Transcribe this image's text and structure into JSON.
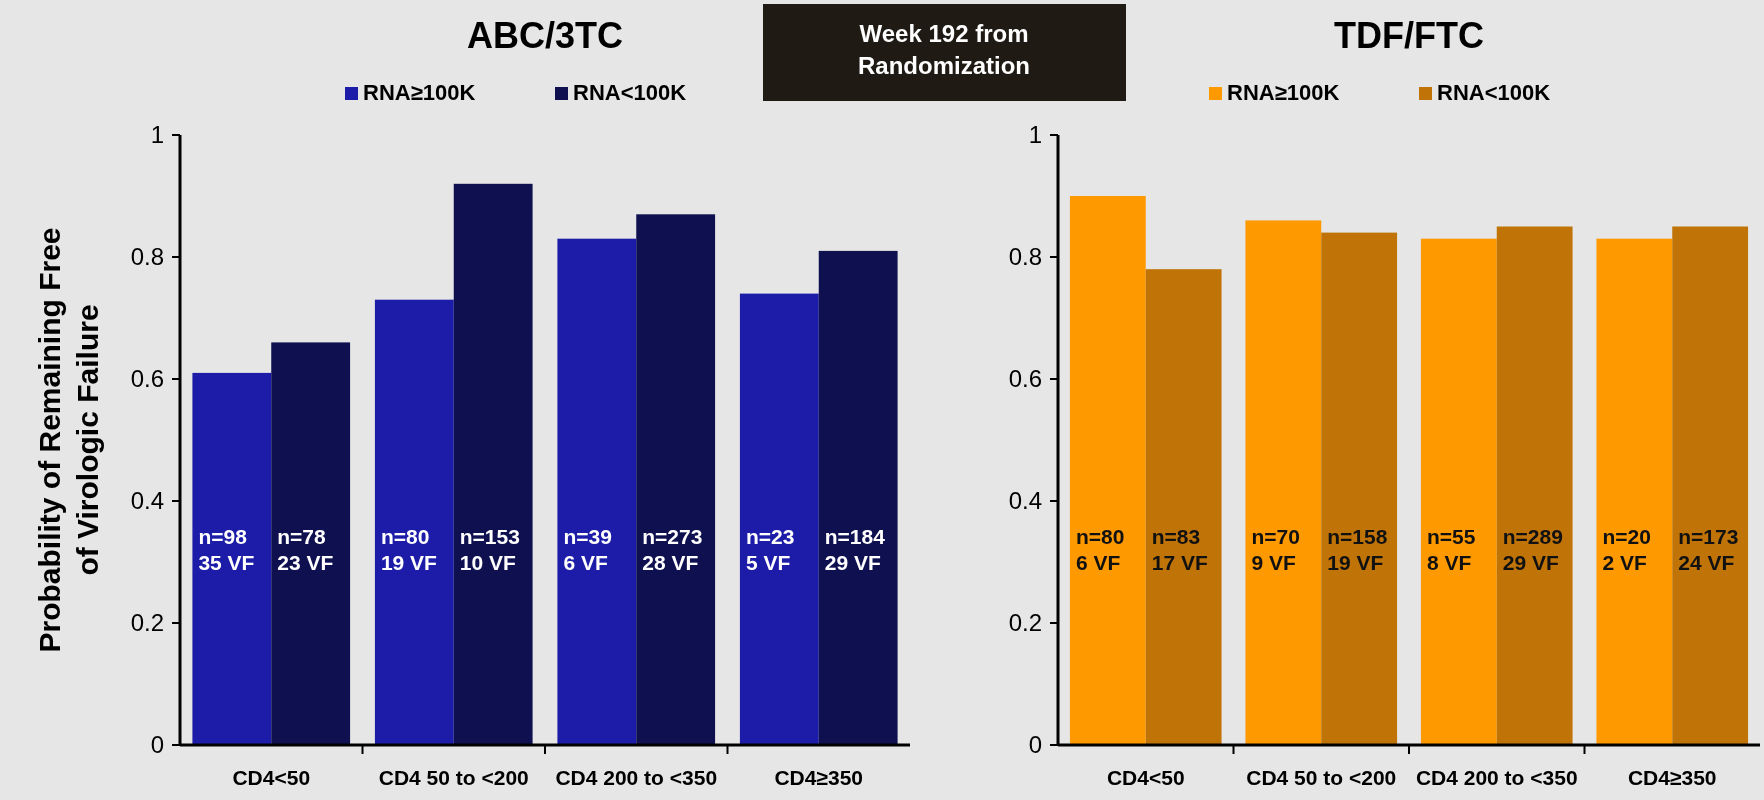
{
  "chart_data": [
    {
      "type": "bar",
      "title": "ABC/3TC",
      "ylabel": "Probability of Remaining Free of Virologic Failure",
      "categories": [
        "CD4<50",
        "CD4 50 to <200",
        "CD4 200 to <350",
        "CD4≥350"
      ],
      "ylim": [
        0,
        1
      ],
      "yticks": [
        0,
        0.2,
        0.4,
        0.6,
        0.8,
        1
      ],
      "legend": "top",
      "annotations": [
        "Week 192 from Randomization"
      ],
      "series": [
        {
          "name": "RNA≥100K",
          "color": "#1c1ca8",
          "values": [
            0.61,
            0.73,
            0.83,
            0.74
          ],
          "value_labels": [
            "n=98\n35 VF",
            "n=80\n19 VF",
            "n=39\n6 VF",
            "n=23\n5 VF"
          ]
        },
        {
          "name": "RNA<100K",
          "color": "#0f1050",
          "values": [
            0.66,
            0.92,
            0.87,
            0.81
          ],
          "value_labels": [
            "n=78\n23 VF",
            "n=153\n10 VF",
            "n=273\n28 VF",
            "n=184\n29 VF"
          ]
        }
      ]
    },
    {
      "type": "bar",
      "title": "TDF/FTC",
      "categories": [
        "CD4<50",
        "CD4 50 to <200",
        "CD4 200 to <350",
        "CD4≥350"
      ],
      "ylim": [
        0,
        1
      ],
      "yticks": [
        0,
        0.2,
        0.4,
        0.6,
        0.8,
        1
      ],
      "legend": "top",
      "series": [
        {
          "name": "RNA≥100K",
          "color": "#ff9900",
          "values": [
            0.9,
            0.86,
            0.83,
            0.83
          ],
          "value_labels": [
            "n=80\n6 VF",
            "n=70\n9 VF",
            "n=55\n8 VF",
            "n=20\n2 VF"
          ]
        },
        {
          "name": "RNA<100K",
          "color": "#c07408",
          "values": [
            0.78,
            0.84,
            0.85,
            0.85
          ],
          "value_labels": [
            "n=83\n17 VF",
            "n=158\n19 VF",
            "n=289\n29 VF",
            "n=173\n24 VF"
          ]
        }
      ]
    }
  ]
}
